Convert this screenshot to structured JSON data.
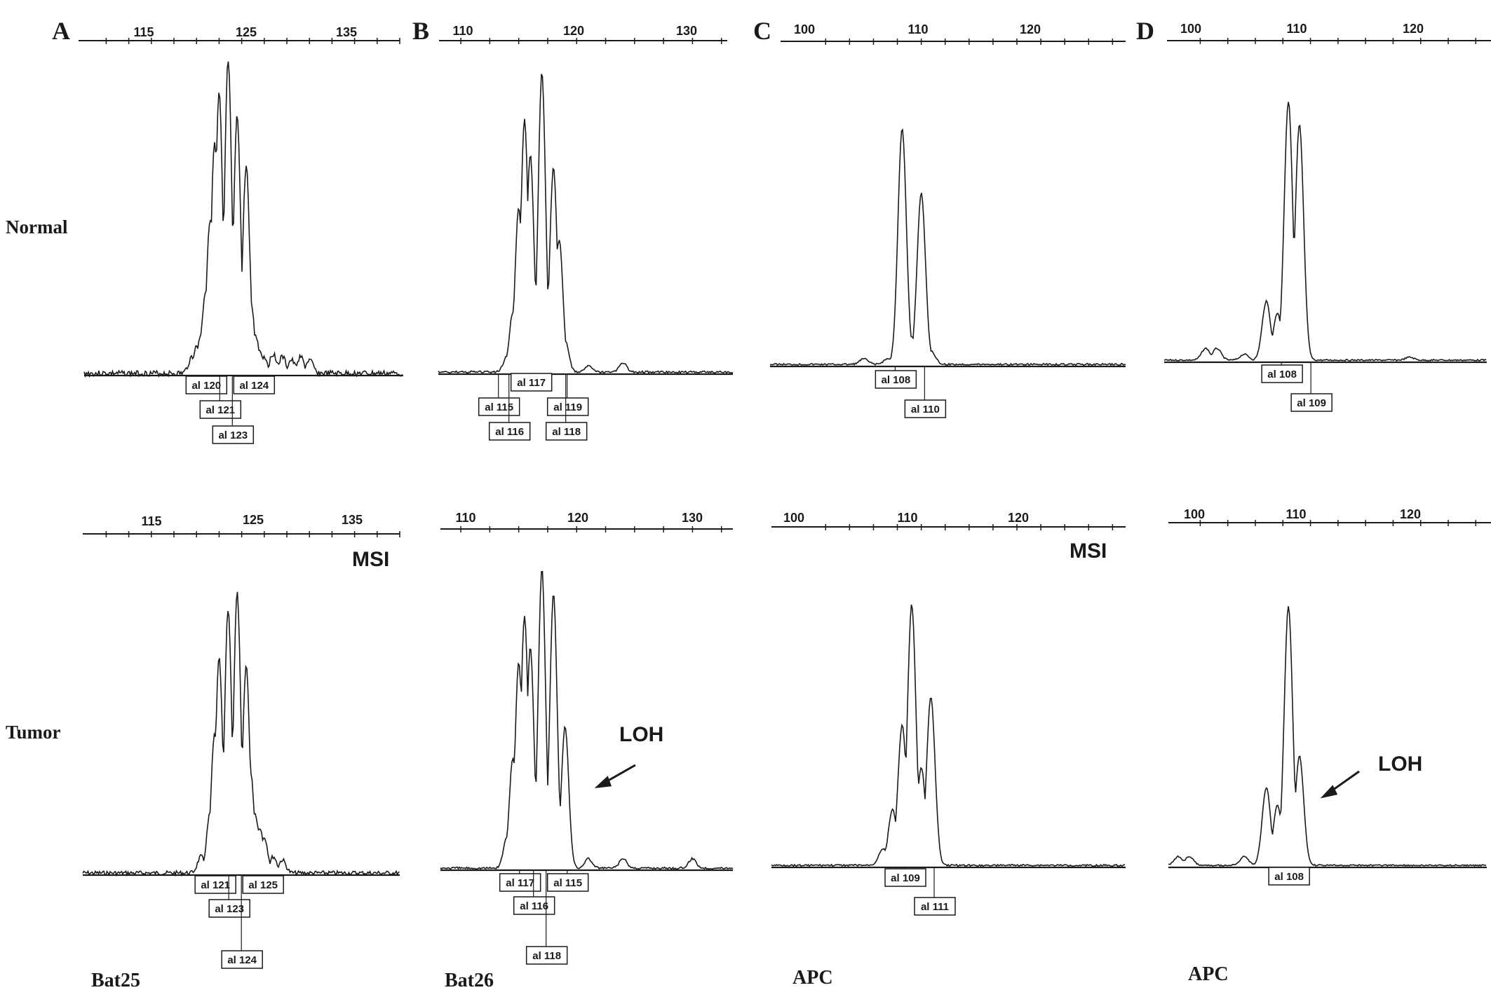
{
  "rows": [
    "Normal",
    "Tumor"
  ],
  "panels": [
    {
      "letter": "A",
      "marker": "Bat25"
    },
    {
      "letter": "B",
      "marker": "Bat26"
    },
    {
      "letter": "C",
      "marker": "APC"
    },
    {
      "letter": "D",
      "marker": "APC"
    }
  ],
  "chart_data": [
    {
      "type": "line",
      "panel": "A",
      "row": "Normal",
      "marker": "Bat25",
      "title": "",
      "xlabel": "",
      "ylabel": "",
      "xlim": [
        107,
        140
      ],
      "xticks": [
        115,
        125,
        135
      ],
      "peaks": [
        [
          117,
          0.05
        ],
        [
          117.5,
          0.08
        ],
        [
          118,
          0.12
        ],
        [
          118.5,
          0.25
        ],
        [
          119,
          0.47
        ],
        [
          119.5,
          0.7
        ],
        [
          120,
          0.85
        ],
        [
          121,
          0.95
        ],
        [
          122,
          0.78
        ],
        [
          123,
          0.63
        ],
        [
          123.5,
          0.22
        ],
        [
          124,
          0.12
        ],
        [
          124.5,
          0.07
        ],
        [
          125,
          0.05
        ],
        [
          126,
          0.06
        ],
        [
          127,
          0.05
        ],
        [
          128,
          0.04
        ],
        [
          129,
          0.05
        ],
        [
          130,
          0.04
        ]
      ],
      "alleles": [
        "al 120",
        "al 124",
        "al 121",
        "al 123"
      ],
      "annotations": []
    },
    {
      "type": "line",
      "panel": "B",
      "row": "Normal",
      "marker": "Bat26",
      "title": "",
      "xlabel": "",
      "ylabel": "",
      "xlim": [
        108,
        133
      ],
      "xticks": [
        110,
        120,
        130
      ],
      "peaks": [
        [
          114,
          0.05
        ],
        [
          114.5,
          0.19
        ],
        [
          115,
          0.52
        ],
        [
          115.5,
          0.8
        ],
        [
          116,
          0.69
        ],
        [
          117,
          0.95
        ],
        [
          118,
          0.65
        ],
        [
          118.5,
          0.42
        ],
        [
          119,
          0.1
        ],
        [
          121,
          0.02
        ],
        [
          124,
          0.03
        ]
      ],
      "alleles": [
        "al 117",
        "al 115",
        "al 119",
        "al 116",
        "al 118"
      ],
      "annotations": []
    },
    {
      "type": "line",
      "panel": "C",
      "row": "Normal",
      "marker": "APC",
      "title": "",
      "xlabel": "",
      "ylabel": "",
      "xlim": [
        98,
        131
      ],
      "xticks": [
        100,
        110,
        120
      ],
      "peaks": [
        [
          104,
          0.02
        ],
        [
          106.5,
          0.02
        ],
        [
          108,
          0.84
        ],
        [
          109,
          0.1
        ],
        [
          110,
          0.61
        ],
        [
          111,
          0.05
        ]
      ],
      "alleles": [
        "al 108",
        "al 110"
      ],
      "annotations": []
    },
    {
      "type": "line",
      "panel": "D",
      "row": "Normal",
      "marker": "APC",
      "title": "",
      "xlabel": "",
      "ylabel": "",
      "xlim": [
        98,
        126
      ],
      "xticks": [
        100,
        110,
        120
      ],
      "peaks": [
        [
          100.5,
          0.04
        ],
        [
          101.5,
          0.04
        ],
        [
          104,
          0.02
        ],
        [
          106,
          0.2
        ],
        [
          107,
          0.16
        ],
        [
          108,
          0.88
        ],
        [
          109,
          0.8
        ],
        [
          119,
          0.01
        ]
      ],
      "alleles": [
        "al 108",
        "al 109"
      ],
      "annotations": []
    },
    {
      "type": "line",
      "panel": "A",
      "row": "Tumor",
      "marker": "Bat25",
      "title": "",
      "xlabel": "",
      "ylabel": "",
      "xlim": [
        107,
        140
      ],
      "xticks": [
        115,
        125,
        135
      ],
      "peaks": [
        [
          118,
          0.05
        ],
        [
          119,
          0.18
        ],
        [
          119.5,
          0.42
        ],
        [
          120,
          0.65
        ],
        [
          121,
          0.8
        ],
        [
          122,
          0.85
        ],
        [
          123,
          0.63
        ],
        [
          123.5,
          0.3
        ],
        [
          124,
          0.18
        ],
        [
          124.5,
          0.14
        ],
        [
          125,
          0.11
        ],
        [
          126,
          0.05
        ],
        [
          127,
          0.04
        ]
      ],
      "alleles": [
        "al 121",
        "al 125",
        "al 123",
        "al 124"
      ],
      "annotations": [
        "MSI"
      ]
    },
    {
      "type": "line",
      "panel": "B",
      "row": "Tumor",
      "marker": "Bat26",
      "title": "",
      "xlabel": "",
      "ylabel": "",
      "xlim": [
        108,
        133
      ],
      "xticks": [
        110,
        120,
        130
      ],
      "peaks": [
        [
          114,
          0.1
        ],
        [
          114.5,
          0.35
        ],
        [
          115,
          0.65
        ],
        [
          115.5,
          0.8
        ],
        [
          116,
          0.7
        ],
        [
          117,
          0.95
        ],
        [
          118,
          0.87
        ],
        [
          119,
          0.45
        ],
        [
          121,
          0.03
        ],
        [
          124,
          0.03
        ],
        [
          130,
          0.03
        ]
      ],
      "alleles": [
        "al 117",
        "al 115",
        "al 116",
        "al 118"
      ],
      "annotations": [
        "LOH"
      ]
    },
    {
      "type": "line",
      "panel": "C",
      "row": "Tumor",
      "marker": "APC",
      "title": "",
      "xlabel": "",
      "ylabel": "",
      "xlim": [
        98,
        131
      ],
      "xticks": [
        100,
        110,
        120
      ],
      "peaks": [
        [
          106,
          0.06
        ],
        [
          107,
          0.2
        ],
        [
          108,
          0.5
        ],
        [
          109,
          0.93
        ],
        [
          110,
          0.35
        ],
        [
          111,
          0.6
        ]
      ],
      "alleles": [
        "al 109",
        "al 111"
      ],
      "annotations": [
        "MSI"
      ]
    },
    {
      "type": "line",
      "panel": "D",
      "row": "Tumor",
      "marker": "APC",
      "title": "",
      "xlabel": "",
      "ylabel": "",
      "xlim": [
        98,
        126
      ],
      "xticks": [
        100,
        110,
        120
      ],
      "peaks": [
        [
          98,
          0.03
        ],
        [
          99,
          0.03
        ],
        [
          104,
          0.03
        ],
        [
          106,
          0.27
        ],
        [
          107,
          0.21
        ],
        [
          108,
          0.9
        ],
        [
          109,
          0.38
        ]
      ],
      "alleles": [
        "al 108"
      ],
      "annotations": [
        "LOH"
      ]
    }
  ]
}
